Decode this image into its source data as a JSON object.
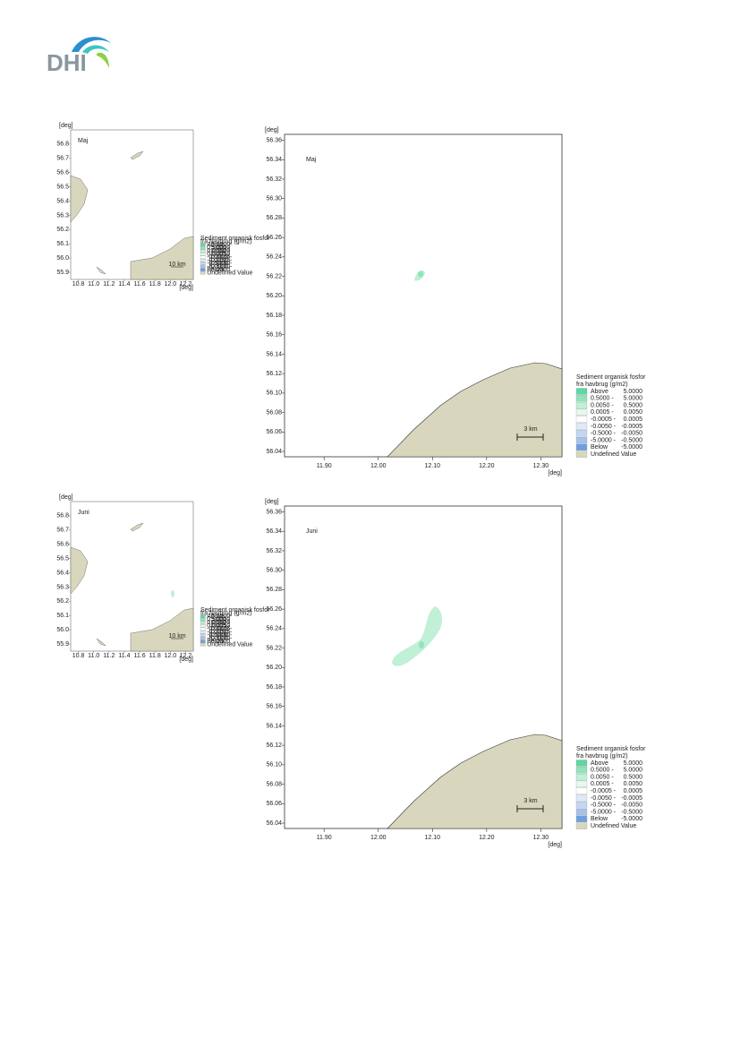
{
  "header": {
    "logo": "DHI"
  },
  "legend": {
    "title_lines": [
      "Sediment organisk fosfor",
      "fra havbrug (g/m2)"
    ],
    "items": [
      {
        "from": "Above",
        "to": "5.0000",
        "color": "#5fd7a1"
      },
      {
        "from": "0.5000 -",
        "to": "5.0000",
        "color": "#8fe4b9"
      },
      {
        "from": "0.0050 -",
        "to": "0.5000",
        "color": "#c0f0d6"
      },
      {
        "from": "0.0005 -",
        "to": "0.0050",
        "color": "#e7f8ee"
      },
      {
        "from": "-0.0005 -",
        "to": "0.0005",
        "color": "#ffffff"
      },
      {
        "from": "-0.0050 -",
        "to": "-0.0005",
        "color": "#dfe9f8"
      },
      {
        "from": "-0.5000 -",
        "to": "-0.0050",
        "color": "#c3d6f2"
      },
      {
        "from": "-5.0000 -",
        "to": "-0.5000",
        "color": "#a5c1ec"
      },
      {
        "from": "Below",
        "to": "-5.0000",
        "color": "#6f9fe0"
      },
      {
        "from": "Undefined Value",
        "to": "",
        "color": "#d8d7bd"
      }
    ]
  },
  "maps": [
    {
      "label": "Maj",
      "unit_y": "[deg]",
      "unit_x": "[deg]",
      "scale": "3 km",
      "overview_scale": "10 km"
    },
    {
      "label": "Juni",
      "unit_y": "[deg]",
      "unit_x": "[deg]",
      "scale": "3 km",
      "overview_scale": "10 km"
    }
  ],
  "detail_axes": {
    "xlim": [
      11.827,
      12.339
    ],
    "ylim": [
      56.0345,
      56.366
    ],
    "xticks": [
      {
        "value": 11.9,
        "label": "11.90"
      },
      {
        "value": 12,
        "label": "12.00"
      },
      {
        "value": 12.1,
        "label": "12.10"
      },
      {
        "value": 12.2,
        "label": "12.20"
      },
      {
        "value": 12.3,
        "label": "12.30"
      }
    ],
    "yticks": [
      {
        "value": 56.04,
        "label": "56.04"
      },
      {
        "value": 56.06,
        "label": "56.06"
      },
      {
        "value": 56.08,
        "label": "56.08"
      },
      {
        "value": 56.1,
        "label": "56.10"
      },
      {
        "value": 56.12,
        "label": "56.12"
      },
      {
        "value": 56.14,
        "label": "56.14"
      },
      {
        "value": 56.16,
        "label": "56.16"
      },
      {
        "value": 56.18,
        "label": "56.18"
      },
      {
        "value": 56.2,
        "label": "56.20"
      },
      {
        "value": 56.22,
        "label": "56.22"
      },
      {
        "value": 56.24,
        "label": "56.24"
      },
      {
        "value": 56.26,
        "label": "56.26"
      },
      {
        "value": 56.28,
        "label": "56.28"
      },
      {
        "value": 56.3,
        "label": "56.30"
      },
      {
        "value": 56.32,
        "label": "56.32"
      },
      {
        "value": 56.34,
        "label": "56.34"
      },
      {
        "value": 56.36,
        "label": "56.36"
      }
    ]
  },
  "overview_axes": {
    "xlim": [
      10.7,
      12.3
    ],
    "ylim": [
      55.85,
      56.9
    ],
    "xticks": [
      {
        "value": 10.8,
        "label": "10.8"
      },
      {
        "value": 11,
        "label": "11.0"
      },
      {
        "value": 11.2,
        "label": "11.2"
      },
      {
        "value": 11.4,
        "label": "11.4"
      },
      {
        "value": 11.6,
        "label": "11.6"
      },
      {
        "value": 11.8,
        "label": "11.8"
      },
      {
        "value": 12,
        "label": "12.0"
      },
      {
        "value": 12.2,
        "label": "12.2"
      }
    ],
    "yticks": [
      {
        "value": 55.9,
        "label": "55.9"
      },
      {
        "value": 56,
        "label": "56.0"
      },
      {
        "value": 56.1,
        "label": "56.1"
      },
      {
        "value": 56.2,
        "label": "56.2"
      },
      {
        "value": 56.3,
        "label": "56.3"
      },
      {
        "value": 56.4,
        "label": "56.4"
      },
      {
        "value": 56.5,
        "label": "56.5"
      },
      {
        "value": 56.6,
        "label": "56.6"
      },
      {
        "value": 56.7,
        "label": "56.7"
      },
      {
        "value": 56.8,
        "label": "56.8"
      }
    ]
  }
}
